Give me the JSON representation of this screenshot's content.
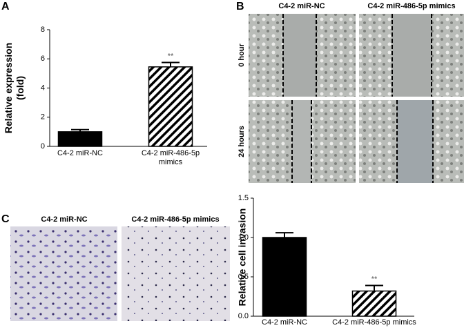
{
  "chart_data": [
    {
      "type": "bar",
      "ylabel": [
        "Relative expression",
        "(fold)"
      ],
      "categories": [
        "C4-2 miR-NC",
        "C4-2 miR-486-5p mimics"
      ],
      "values": [
        1.0,
        5.45
      ],
      "errors": [
        0.15,
        0.3
      ],
      "colors": [
        "#000000",
        "#ffffff"
      ],
      "hatch": [
        false,
        true
      ],
      "annotations": [
        null,
        "**"
      ],
      "ylim": [
        0,
        8
      ],
      "yticks": [
        0,
        2,
        4,
        6,
        8
      ]
    },
    {
      "type": "bar",
      "ylabel": [
        "Relative cell invasion"
      ],
      "categories": [
        "C4-2 miR-NC",
        "C4-2 miR-486-5p mimics"
      ],
      "values": [
        1.0,
        0.32
      ],
      "errors": [
        0.06,
        0.07
      ],
      "colors": [
        "#000000",
        "#ffffff"
      ],
      "hatch": [
        false,
        true
      ],
      "annotations": [
        null,
        "**"
      ],
      "ylim": [
        0,
        1.5
      ],
      "yticks": [
        {
          "value": 0,
          "label": "0.0"
        },
        {
          "value": 0.5,
          "label": "0.5"
        },
        {
          "value": 1.0,
          "label": "1.0"
        },
        {
          "value": 1.5,
          "label": "1.5"
        }
      ]
    }
  ],
  "panels": {
    "labels": [
      "A",
      "B",
      "C"
    ],
    "b_columns": [
      "C4-2 miR-NC",
      "C4-2 miR-486-5p mimics"
    ],
    "b_rows": [
      "0 hour",
      "24 hours"
    ],
    "c_columns": [
      "C4-2 miR-NC",
      "C4-2 miR-486-5p mimics"
    ]
  }
}
